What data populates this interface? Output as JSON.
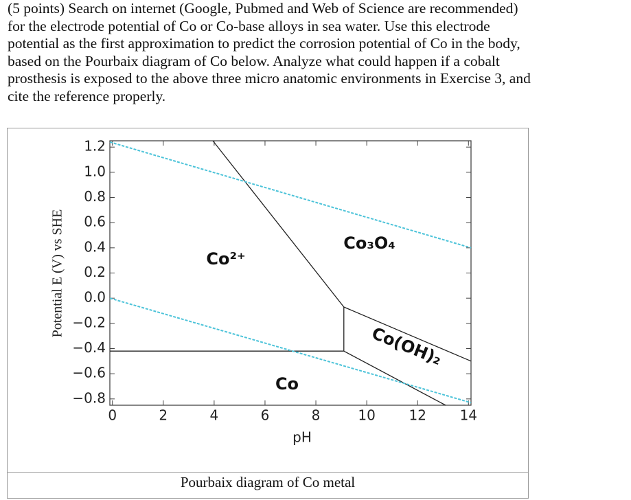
{
  "question": {
    "lines": [
      "(5 points) Search on internet (Google, Pubmed and Web of Science are recommended)",
      "for the electrode potential of Co or Co-base alloys in sea water. Use this electrode",
      "potential as the first approximation to predict the corrosion potential of Co in the body,",
      "based on the Pourbaix diagram of Co below. Analyze what could happen if a cobalt",
      "prosthesis is exposed to the above three micro anatomic environments in Exercise 3, and",
      "cite the reference properly."
    ]
  },
  "chart_data": {
    "type": "line",
    "x_label": "pH",
    "y_label": "Potential E (V) vs SHE",
    "xlim": [
      -0.1,
      14.1
    ],
    "ylim": [
      -0.85,
      1.25
    ],
    "xticks": [
      0,
      2,
      4,
      6,
      8,
      10,
      12,
      14
    ],
    "yticks": [
      {
        "value": 1.2,
        "label": "1.2"
      },
      {
        "value": 1,
        "label": "1.0"
      },
      {
        "value": 0.8,
        "label": "0.8"
      },
      {
        "value": 0.6,
        "label": "0.6"
      },
      {
        "value": 0.4,
        "label": "0.4"
      },
      {
        "value": 0.2,
        "label": "0.2"
      },
      {
        "value": 0,
        "label": "0.0"
      },
      {
        "value": -0.2,
        "label": "−0.2"
      },
      {
        "value": -0.4,
        "label": "−0.4"
      },
      {
        "value": -0.6,
        "label": "−0.6"
      },
      {
        "value": -0.8,
        "label": "−0.8"
      }
    ],
    "annotations": [
      "Co²⁺",
      "Co₃O₄",
      "Co(OH)₂",
      "Co"
    ],
    "series": [
      {
        "color": "#222222",
        "x": [
          -0.1,
          9.1
        ],
        "values": [
          -0.42,
          -0.42
        ]
      },
      {
        "color": "#222222",
        "x": [
          9.1,
          9.1
        ],
        "values": [
          -0.42,
          -0.07
        ]
      },
      {
        "color": "#222222",
        "x": [
          3.95,
          9.1
        ],
        "values": [
          1.25,
          -0.07
        ]
      },
      {
        "color": "#222222",
        "x": [
          9.1,
          14.1
        ],
        "values": [
          -0.07,
          -0.5
        ]
      },
      {
        "color": "#222222",
        "x": [
          9.1,
          13.1
        ],
        "values": [
          -0.42,
          -0.85
        ]
      },
      {
        "color": "#4cc3d9",
        "dashed": true,
        "x": [
          -0.1,
          14.1
        ],
        "values": [
          1.24,
          0.4
        ]
      },
      {
        "color": "#4cc3d9",
        "dashed": true,
        "x": [
          -0.1,
          14.1
        ],
        "values": [
          0,
          -0.83
        ]
      }
    ]
  },
  "caption": "Pourbaix diagram of Co metal"
}
